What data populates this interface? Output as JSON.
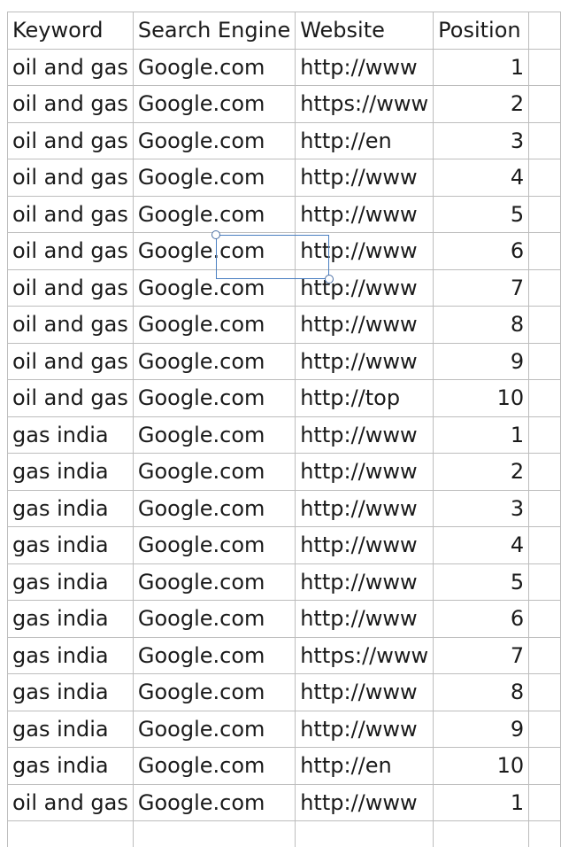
{
  "sheet": {
    "headers": [
      "Keyword",
      "Search Engine",
      "Website",
      "Position",
      ""
    ],
    "rows": [
      {
        "keyword": "oil and gas",
        "engine": "Google.com",
        "website": "http://www",
        "position": "1"
      },
      {
        "keyword": "oil and gas",
        "engine": "Google.com",
        "website": "https://www",
        "position": "2"
      },
      {
        "keyword": "oil and gas",
        "engine": "Google.com",
        "website": "http://en",
        "position": "3"
      },
      {
        "keyword": "oil and gas",
        "engine": "Google.com",
        "website": "http://www",
        "position": "4"
      },
      {
        "keyword": "oil and gas",
        "engine": "Google.com",
        "website": "http://www",
        "position": "5"
      },
      {
        "keyword": "oil and gas",
        "engine": "Google.com",
        "website": "http://www",
        "position": "6"
      },
      {
        "keyword": "oil and gas",
        "engine": "Google.com",
        "website": "http://www",
        "position": "7"
      },
      {
        "keyword": "oil and gas",
        "engine": "Google.com",
        "website": "http://www",
        "position": "8"
      },
      {
        "keyword": "oil and gas",
        "engine": "Google.com",
        "website": "http://www",
        "position": "9"
      },
      {
        "keyword": "oil and gas",
        "engine": "Google.com",
        "website": "http://top",
        "position": "10"
      },
      {
        "keyword": "gas india",
        "engine": "Google.com",
        "website": "http://www",
        "position": "1"
      },
      {
        "keyword": "gas india",
        "engine": "Google.com",
        "website": "http://www",
        "position": "2"
      },
      {
        "keyword": "gas india",
        "engine": "Google.com",
        "website": "http://www",
        "position": "3"
      },
      {
        "keyword": "gas india",
        "engine": "Google.com",
        "website": "http://www",
        "position": "4"
      },
      {
        "keyword": "gas india",
        "engine": "Google.com",
        "website": "http://www",
        "position": "5"
      },
      {
        "keyword": "gas india",
        "engine": "Google.com",
        "website": "http://www",
        "position": "6"
      },
      {
        "keyword": "gas india",
        "engine": "Google.com",
        "website": "https://www",
        "position": "7"
      },
      {
        "keyword": "gas india",
        "engine": "Google.com",
        "website": "http://www",
        "position": "8"
      },
      {
        "keyword": "gas india",
        "engine": "Google.com",
        "website": "http://www",
        "position": "9"
      },
      {
        "keyword": "gas india",
        "engine": "Google.com",
        "website": "http://en",
        "position": "10"
      },
      {
        "keyword": "oil and gas",
        "engine": "Google.com",
        "website": "http://www",
        "position": "1"
      },
      {
        "keyword": "",
        "engine": "",
        "website": "",
        "position": ""
      }
    ]
  }
}
